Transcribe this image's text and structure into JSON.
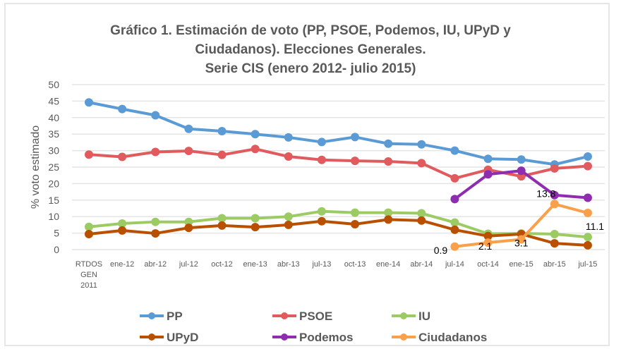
{
  "chart_data": {
    "type": "line",
    "title_lines": [
      "Gráfico 1.  Estimación de voto (PP, PSOE, Podemos, IU, UPyD y",
      "Ciudadanos). Elecciones Generales.",
      "Serie CIS (enero 2012- julio 2015)"
    ],
    "xlabel": "",
    "ylabel": "% voto estimado",
    "ylim": [
      0,
      50
    ],
    "yticks": [
      0,
      5,
      10,
      15,
      20,
      25,
      30,
      35,
      40,
      45,
      50
    ],
    "grid": true,
    "legend_position": "bottom",
    "categories": [
      [
        "RTDOS",
        "GEN",
        "2011"
      ],
      [
        "ene-12"
      ],
      [
        "abr-12"
      ],
      [
        "jul-12"
      ],
      [
        "oct-12"
      ],
      [
        "ene-13"
      ],
      [
        "abr-13"
      ],
      [
        "jul-13"
      ],
      [
        "oct-13"
      ],
      [
        "ene-14"
      ],
      [
        "abr-14"
      ],
      [
        "jul-14"
      ],
      [
        "oct-14"
      ],
      [
        "ene-15"
      ],
      [
        "abr-15"
      ],
      [
        "jul-15"
      ]
    ],
    "series": [
      {
        "name": "PP",
        "color": "#5B9BD5",
        "values": [
          44.6,
          42.6,
          40.7,
          36.6,
          35.9,
          35.0,
          34.0,
          32.6,
          34.1,
          32.1,
          31.9,
          30.0,
          27.5,
          27.3,
          25.8,
          28.2
        ]
      },
      {
        "name": "PSOE",
        "color": "#E05A5E",
        "values": [
          28.8,
          28.1,
          29.6,
          29.9,
          28.7,
          30.5,
          28.2,
          27.2,
          26.9,
          26.7,
          26.2,
          21.6,
          24.2,
          22.2,
          24.6,
          25.3
        ]
      },
      {
        "name": "IU",
        "color": "#9CCB63",
        "values": [
          6.9,
          7.9,
          8.4,
          8.4,
          9.5,
          9.5,
          10.0,
          11.6,
          11.2,
          11.2,
          11.0,
          8.2,
          4.8,
          4.9,
          4.7,
          3.8
        ]
      },
      {
        "name": "UPyD",
        "color": "#B85000",
        "values": [
          4.7,
          5.8,
          4.9,
          6.6,
          7.3,
          6.8,
          7.5,
          8.6,
          7.7,
          9.1,
          8.8,
          6.0,
          4.1,
          4.7,
          1.9,
          1.3
        ]
      },
      {
        "name": "Podemos",
        "color": "#8E2DB0",
        "values": [
          null,
          null,
          null,
          null,
          null,
          null,
          null,
          null,
          null,
          null,
          null,
          15.3,
          22.8,
          23.9,
          16.5,
          15.7
        ]
      },
      {
        "name": "Ciudadanos",
        "color": "#FBA04A",
        "values": [
          null,
          null,
          null,
          null,
          null,
          null,
          null,
          null,
          null,
          null,
          null,
          0.9,
          2.1,
          3.1,
          13.8,
          11.1
        ],
        "data_labels": [
          "0.9",
          "2.1",
          "3.1",
          "13.8",
          "11.1"
        ]
      }
    ]
  }
}
